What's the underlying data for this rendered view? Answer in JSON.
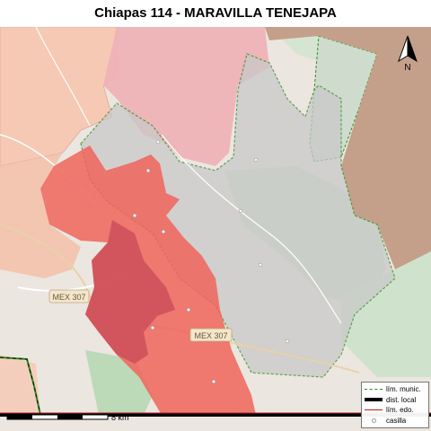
{
  "title": "Chiapas 114 - MARAVILLA TENEJAPA",
  "north_label": "N",
  "road_labels": [
    "MEX 307",
    "MEX 307"
  ],
  "scale_label": "8 km",
  "legend": {
    "items": [
      {
        "label": "lím. munic.",
        "symbol": "munic"
      },
      {
        "label": "dist. local",
        "symbol": "dist"
      },
      {
        "label": "lím. edo.",
        "symbol": "edo"
      },
      {
        "label": "casilla",
        "symbol": "casilla"
      }
    ]
  },
  "colors": {
    "highlight": "#f0645a",
    "highlight_dark": "#d24a52",
    "district_gray": "#c9c9c9",
    "neighbor_pink": "#f2b6b6",
    "neighbor_salmon": "#f6c0a8",
    "neighbor_brown": "#c4a08a",
    "forest_green": "#c2dcc0",
    "municipal_line": "#2e8b22"
  }
}
